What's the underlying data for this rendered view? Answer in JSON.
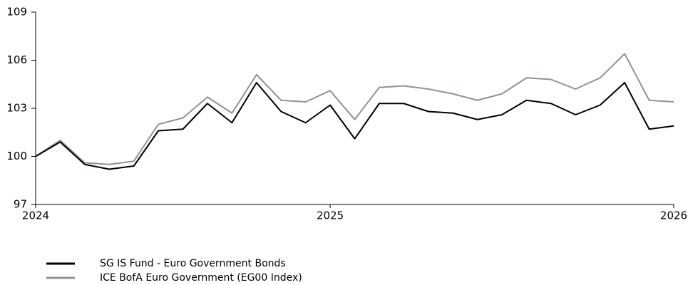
{
  "chart_data": {
    "type": "line",
    "categories": [
      "2024",
      null,
      null,
      null,
      null,
      null,
      null,
      null,
      null,
      null,
      null,
      null,
      "2025",
      null,
      null,
      null,
      null,
      null,
      null,
      null,
      null,
      null,
      null,
      null,
      null,
      null,
      "2026"
    ],
    "series": [
      {
        "name": "SG IS Fund - Euro Government Bonds",
        "color": "#000000",
        "values": [
          100,
          100.9,
          99.5,
          99.2,
          99.4,
          101.6,
          101.7,
          103.3,
          102.1,
          104.6,
          102.8,
          102.1,
          103.2,
          101.1,
          103.3,
          103.3,
          102.8,
          102.7,
          102.3,
          102.6,
          103.5,
          103.3,
          102.6,
          103.2,
          104.6,
          101.7,
          101.9
        ]
      },
      {
        "name": "ICE BofA Euro Government (EG00 Index)",
        "color": "#8a9499",
        "values": [
          100,
          101.0,
          99.6,
          99.5,
          99.7,
          102.0,
          102.4,
          103.7,
          102.7,
          105.1,
          103.5,
          103.4,
          104.1,
          102.3,
          104.3,
          104.4,
          104.2,
          103.9,
          103.5,
          103.9,
          104.9,
          104.8,
          104.2,
          104.9,
          106.4,
          103.5,
          103.4
        ]
      }
    ],
    "ylim": [
      97,
      109
    ],
    "yticks": [
      97,
      100,
      103,
      106,
      109
    ],
    "grid": false
  }
}
